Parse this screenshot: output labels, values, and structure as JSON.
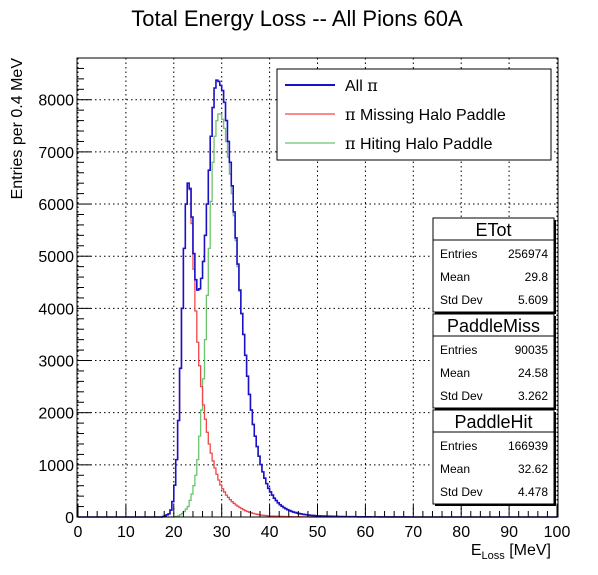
{
  "chart_data": {
    "type": "histogram",
    "title": "Total Energy Loss -- All Pions 60A",
    "xlabel_main": "E",
    "xlabel_sub": "Loss",
    "xlabel_unit": " [MeV]",
    "ylabel": "Entries per 0.4 MeV",
    "xlim": [
      0,
      100
    ],
    "ylim": [
      0,
      8800
    ],
    "bin_width": 0.4,
    "grid": true,
    "x_ticks": [
      0,
      10,
      20,
      30,
      40,
      50,
      60,
      70,
      80,
      90,
      100
    ],
    "y_ticks": [
      0,
      1000,
      2000,
      3000,
      4000,
      5000,
      6000,
      7000,
      8000
    ],
    "legend": {
      "placement": "top-right",
      "entries": [
        {
          "prefix": "All ",
          "greek": "π",
          "suffix": "",
          "color": "#1a10c8"
        },
        {
          "prefix": "",
          "greek": "π",
          "suffix": " Missing Halo Paddle",
          "color": "#f04848"
        },
        {
          "prefix": "",
          "greek": "π",
          "suffix": " Hiting Halo Paddle",
          "color": "#6cc46c"
        }
      ]
    },
    "series": [
      {
        "name": "All π",
        "color": "#1a10c8",
        "points": [
          [
            17.5,
            0
          ],
          [
            18,
            15
          ],
          [
            19,
            60
          ],
          [
            19.6,
            170
          ],
          [
            20,
            420
          ],
          [
            20.4,
            800
          ],
          [
            20.8,
            1400
          ],
          [
            21.2,
            2300
          ],
          [
            21.6,
            3400
          ],
          [
            22,
            4600
          ],
          [
            22.4,
            5700
          ],
          [
            22.8,
            6300
          ],
          [
            23.2,
            6500
          ],
          [
            23.6,
            6100
          ],
          [
            24,
            5400
          ],
          [
            24.4,
            4700
          ],
          [
            24.8,
            4400
          ],
          [
            25.2,
            4300
          ],
          [
            25.6,
            4450
          ],
          [
            26,
            4700
          ],
          [
            26.4,
            5100
          ],
          [
            26.8,
            5700
          ],
          [
            27.2,
            6300
          ],
          [
            27.6,
            7000
          ],
          [
            28,
            7600
          ],
          [
            28.4,
            8100
          ],
          [
            28.8,
            8350
          ],
          [
            29.2,
            8400
          ],
          [
            29.6,
            8300
          ],
          [
            30,
            8250
          ],
          [
            30.4,
            8100
          ],
          [
            30.8,
            7800
          ],
          [
            31.2,
            7400
          ],
          [
            31.6,
            7000
          ],
          [
            32,
            6600
          ],
          [
            32.4,
            6100
          ],
          [
            32.8,
            5600
          ],
          [
            33.2,
            5100
          ],
          [
            33.6,
            4600
          ],
          [
            34,
            4100
          ],
          [
            34.4,
            3700
          ],
          [
            34.8,
            3300
          ],
          [
            35.2,
            2900
          ],
          [
            35.6,
            2500
          ],
          [
            36,
            2200
          ],
          [
            36.4,
            1900
          ],
          [
            36.8,
            1650
          ],
          [
            37.2,
            1450
          ],
          [
            37.6,
            1250
          ],
          [
            38,
            1080
          ],
          [
            38.4,
            930
          ],
          [
            38.8,
            800
          ],
          [
            39.2,
            690
          ],
          [
            39.6,
            590
          ],
          [
            40,
            510
          ],
          [
            41,
            360
          ],
          [
            42,
            250
          ],
          [
            43,
            180
          ],
          [
            44,
            130
          ],
          [
            45,
            95
          ],
          [
            46,
            70
          ],
          [
            47,
            52
          ],
          [
            48,
            38
          ],
          [
            50,
            22
          ],
          [
            55,
            8
          ],
          [
            60,
            3
          ],
          [
            70,
            0
          ]
        ]
      },
      {
        "name": "π Missing Halo Paddle",
        "color": "#f04848",
        "points": [
          [
            17.5,
            0
          ],
          [
            18,
            15
          ],
          [
            19,
            60
          ],
          [
            19.6,
            170
          ],
          [
            20,
            420
          ],
          [
            20.4,
            800
          ],
          [
            20.8,
            1400
          ],
          [
            21.2,
            2300
          ],
          [
            21.6,
            3400
          ],
          [
            22,
            4600
          ],
          [
            22.4,
            5700
          ],
          [
            22.8,
            6300
          ],
          [
            23.2,
            6500
          ],
          [
            23.6,
            6050
          ],
          [
            24,
            5200
          ],
          [
            24.4,
            4300
          ],
          [
            24.8,
            3600
          ],
          [
            25.2,
            3100
          ],
          [
            25.6,
            2700
          ],
          [
            26,
            2300
          ],
          [
            26.4,
            2000
          ],
          [
            26.8,
            1750
          ],
          [
            27.2,
            1500
          ],
          [
            27.6,
            1300
          ],
          [
            28,
            1150
          ],
          [
            28.4,
            1000
          ],
          [
            28.8,
            880
          ],
          [
            29.2,
            760
          ],
          [
            29.6,
            660
          ],
          [
            30,
            570
          ],
          [
            31,
            420
          ],
          [
            32,
            310
          ],
          [
            33,
            230
          ],
          [
            34,
            170
          ],
          [
            35,
            120
          ],
          [
            36,
            85
          ],
          [
            37,
            60
          ],
          [
            38,
            40
          ],
          [
            40,
            20
          ],
          [
            45,
            5
          ],
          [
            50,
            0
          ]
        ]
      },
      {
        "name": "π Hiting Halo Paddle",
        "color": "#6cc46c",
        "points": [
          [
            20,
            0
          ],
          [
            21,
            20
          ],
          [
            22,
            80
          ],
          [
            23,
            200
          ],
          [
            24,
            500
          ],
          [
            24.8,
            900
          ],
          [
            25.2,
            1300
          ],
          [
            25.6,
            1800
          ],
          [
            26,
            2300
          ],
          [
            26.4,
            3000
          ],
          [
            26.8,
            3800
          ],
          [
            27.2,
            4700
          ],
          [
            27.6,
            5600
          ],
          [
            28,
            6500
          ],
          [
            28.4,
            7100
          ],
          [
            28.8,
            7500
          ],
          [
            29.2,
            7700
          ],
          [
            29.6,
            7750
          ],
          [
            30,
            7700
          ],
          [
            30.4,
            7550
          ],
          [
            30.8,
            7350
          ],
          [
            31.2,
            7050
          ],
          [
            31.6,
            6750
          ],
          [
            32,
            6400
          ],
          [
            32.4,
            6000
          ],
          [
            32.8,
            5550
          ],
          [
            33.2,
            5050
          ],
          [
            33.6,
            4550
          ],
          [
            34,
            4100
          ],
          [
            34.4,
            3700
          ],
          [
            34.8,
            3300
          ],
          [
            35.2,
            2900
          ],
          [
            35.6,
            2500
          ],
          [
            36,
            2200
          ],
          [
            36.4,
            1900
          ],
          [
            36.8,
            1650
          ],
          [
            37.2,
            1450
          ],
          [
            37.6,
            1250
          ],
          [
            38,
            1080
          ],
          [
            38.4,
            930
          ],
          [
            38.8,
            800
          ],
          [
            39.2,
            690
          ],
          [
            39.6,
            590
          ],
          [
            40,
            510
          ],
          [
            41,
            360
          ],
          [
            42,
            250
          ],
          [
            43,
            180
          ],
          [
            44,
            130
          ],
          [
            45,
            95
          ],
          [
            46,
            70
          ],
          [
            47,
            52
          ],
          [
            48,
            38
          ],
          [
            50,
            22
          ],
          [
            55,
            8
          ],
          [
            60,
            3
          ],
          [
            70,
            0
          ]
        ]
      }
    ],
    "stats_boxes": [
      {
        "title": "ETot",
        "rows": [
          [
            "Entries",
            "256974"
          ],
          [
            "Mean",
            "29.8"
          ],
          [
            "Std Dev",
            "5.609"
          ]
        ]
      },
      {
        "title": "PaddleMiss",
        "rows": [
          [
            "Entries",
            "90035"
          ],
          [
            "Mean",
            "24.58"
          ],
          [
            "Std Dev",
            "3.262"
          ]
        ]
      },
      {
        "title": "PaddleHit",
        "rows": [
          [
            "Entries",
            "166939"
          ],
          [
            "Mean",
            "32.62"
          ],
          [
            "Std Dev",
            "4.478"
          ]
        ]
      }
    ]
  }
}
